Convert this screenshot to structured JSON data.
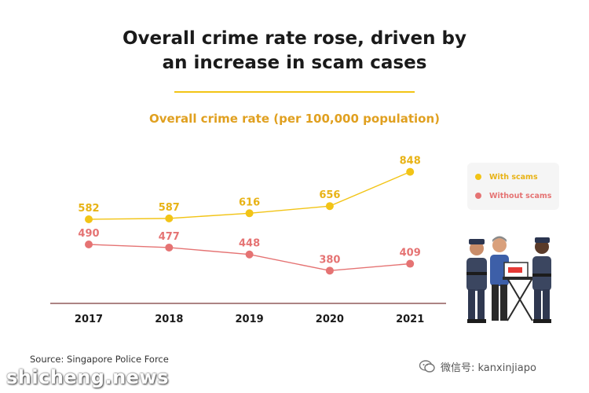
{
  "header": {
    "title_line1": "Overall crime rate rose, driven by",
    "title_line2": "an increase in scam cases"
  },
  "chart_data": {
    "type": "line",
    "title": "Overall crime rate (per 100,000 population)",
    "categories": [
      "2017",
      "2018",
      "2019",
      "2020",
      "2021"
    ],
    "series": [
      {
        "name": "With scams",
        "color": "#f2c416",
        "values": [
          582,
          587,
          616,
          656,
          848
        ]
      },
      {
        "name": "Without scams",
        "color": "#e57373",
        "values": [
          490,
          477,
          448,
          380,
          409
        ]
      }
    ],
    "xlabel": "",
    "ylabel": "",
    "grid": false,
    "legend_position": "right"
  },
  "footer": {
    "source": "Source: Singapore Police Force",
    "watermark_left": "shicheng.news",
    "watermark_right": "微信号: kanxinjiapo",
    "wechat_icon": "wechat-icon"
  },
  "colors": {
    "title": "#1a1a1a",
    "subtitle": "#e0a020",
    "axis": "#7a3b3b"
  }
}
